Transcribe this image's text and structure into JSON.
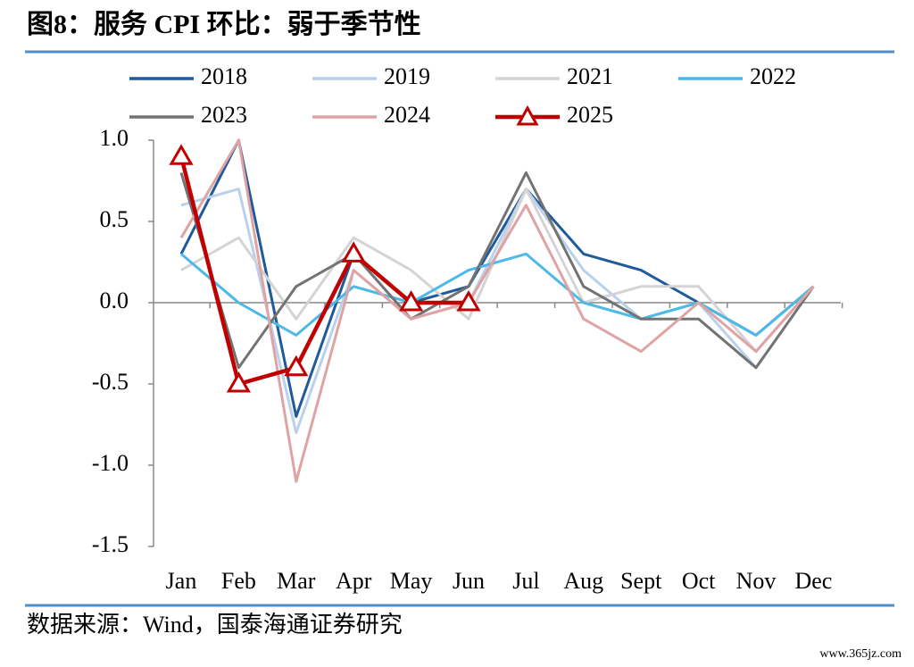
{
  "chart_data": {
    "type": "line",
    "title": "图8：服务 CPI 环比：弱于季节性",
    "source": "数据来源：Wind，国泰海通证券研究",
    "watermark": "www.365jz.com",
    "categories": [
      "Jan",
      "Feb",
      "Mar",
      "Apr",
      "May",
      "Jun",
      "Jul",
      "Aug",
      "Sept",
      "Oct",
      "Nov",
      "Dec"
    ],
    "ylim": [
      -1.5,
      1.0
    ],
    "yticks": [
      {
        "value": 1.0,
        "label": "1.0"
      },
      {
        "value": 0.5,
        "label": "0.5"
      },
      {
        "value": 0,
        "label": "0.0"
      },
      {
        "value": -0.5,
        "label": "-0.5"
      },
      {
        "value": -1.0,
        "label": "-1.0"
      },
      {
        "value": -1.5,
        "label": "-1.5"
      }
    ],
    "series": [
      {
        "name": "2018",
        "color": "#1f5a9a",
        "values": [
          0.3,
          1.0,
          -0.7,
          0.3,
          0.0,
          0.1,
          0.7,
          0.3,
          0.2,
          0.0,
          -0.2,
          0.1
        ]
      },
      {
        "name": "2019",
        "color": "#b9d1ec",
        "values": [
          0.6,
          0.7,
          -0.8,
          0.2,
          -0.1,
          0.0,
          0.7,
          0.2,
          -0.1,
          0.0,
          -0.4,
          0.1
        ]
      },
      {
        "name": "2021",
        "color": "#d4d4d4",
        "values": [
          0.2,
          0.4,
          -0.1,
          0.4,
          0.2,
          -0.1,
          0.7,
          0.0,
          0.1,
          0.1,
          -0.3,
          0.1
        ]
      },
      {
        "name": "2022",
        "color": "#4cb9e6",
        "values": [
          0.3,
          0.0,
          -0.2,
          0.1,
          0.0,
          0.2,
          0.3,
          0.0,
          -0.1,
          0.0,
          -0.2,
          0.1
        ]
      },
      {
        "name": "2023",
        "color": "#737373",
        "values": [
          0.8,
          -0.4,
          0.1,
          0.3,
          -0.1,
          0.1,
          0.8,
          0.1,
          -0.1,
          -0.1,
          -0.4,
          0.1
        ]
      },
      {
        "name": "2024",
        "color": "#e0a3a3",
        "values": [
          0.4,
          1.0,
          -1.1,
          0.2,
          -0.1,
          0.0,
          0.6,
          -0.1,
          -0.3,
          0.0,
          -0.3,
          0.1
        ]
      },
      {
        "name": "2025",
        "color": "#c00000",
        "marker": "triangle",
        "values": [
          0.9,
          -0.5,
          -0.4,
          0.3,
          0.0,
          0.0,
          null,
          null,
          null,
          null,
          null,
          null
        ]
      }
    ]
  }
}
